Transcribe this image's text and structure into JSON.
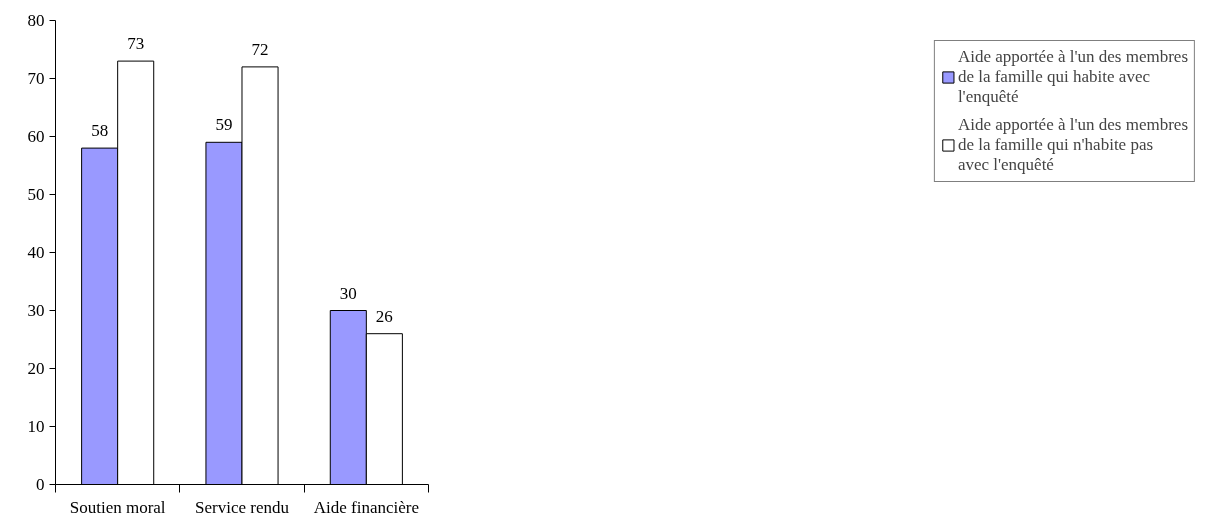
{
  "chart_data": {
    "type": "bar",
    "categories": [
      "Soutien moral",
      "Service rendu",
      "Aide financière"
    ],
    "series": [
      {
        "name": "Aide apportée à l'un des membres de la famille qui habite avec l'enquêté",
        "color": "#9999ff",
        "values": [
          58,
          59,
          30
        ]
      },
      {
        "name": "Aide apportée à l'un des membres de la famille qui n'habite pas avec l'enquêté",
        "color": "#ffffff",
        "values": [
          73,
          72,
          26
        ]
      }
    ],
    "ylim": [
      0,
      80
    ],
    "yticks": [
      0,
      10,
      20,
      30,
      40,
      50,
      60,
      70,
      80
    ],
    "data_labels": true,
    "grid": false,
    "legend": "right"
  }
}
